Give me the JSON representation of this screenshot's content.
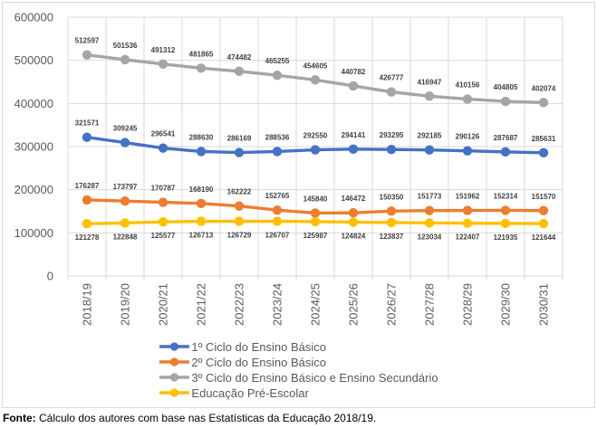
{
  "chart_data": {
    "type": "line",
    "title": "",
    "xlabel": "",
    "ylabel": "",
    "categories": [
      "2018/19",
      "2019/20",
      "2020/21",
      "2021/22",
      "2022/23",
      "2023/24",
      "2024/25",
      "2025/26",
      "2026/27",
      "2027/28",
      "2028/29",
      "2029/30",
      "2030/31"
    ],
    "series": [
      {
        "name": "1º Ciclo do Ensino Básico",
        "color": "#4472C4",
        "label_position": "above",
        "values": [
          321571,
          309245,
          296541,
          288630,
          286169,
          288536,
          292550,
          294141,
          293295,
          292185,
          290126,
          287687,
          285631
        ]
      },
      {
        "name": "2º Ciclo do Ensino Básico",
        "color": "#ED7D31",
        "label_position": "above",
        "values": [
          176287,
          173797,
          170787,
          168190,
          162222,
          152765,
          145840,
          146472,
          150350,
          151773,
          151962,
          152314,
          151570
        ]
      },
      {
        "name": "3º Ciclo do Ensino Básico e Ensino Secundário",
        "color": "#A5A5A5",
        "label_position": "above",
        "values": [
          512597,
          501536,
          491312,
          481865,
          474482,
          465255,
          454605,
          440782,
          426777,
          416947,
          410156,
          404805,
          402074
        ]
      },
      {
        "name": "Educação Pré-Escolar",
        "color": "#FFC000",
        "label_position": "below",
        "values": [
          121278,
          122848,
          125577,
          126713,
          126729,
          126707,
          125987,
          124824,
          123837,
          123034,
          122407,
          121935,
          121644
        ]
      }
    ],
    "ylim": [
      0,
      600000
    ],
    "ytick_labels": [
      "0",
      "100000",
      "200000",
      "300000",
      "400000",
      "500000",
      "600000"
    ],
    "grid": true,
    "show_data_labels": true,
    "legend_position": "bottom"
  },
  "footer": {
    "source_label": "Fonte:",
    "source_text": " Cálculo dos autores com base nas Estatísticas da Educação 2018/19."
  },
  "colors": {
    "gridline": "#D9D9D9",
    "frame_border": "#D9D9D9",
    "axis_text": "#595959",
    "data_label": "#404040",
    "background": "#FFFFFF"
  }
}
